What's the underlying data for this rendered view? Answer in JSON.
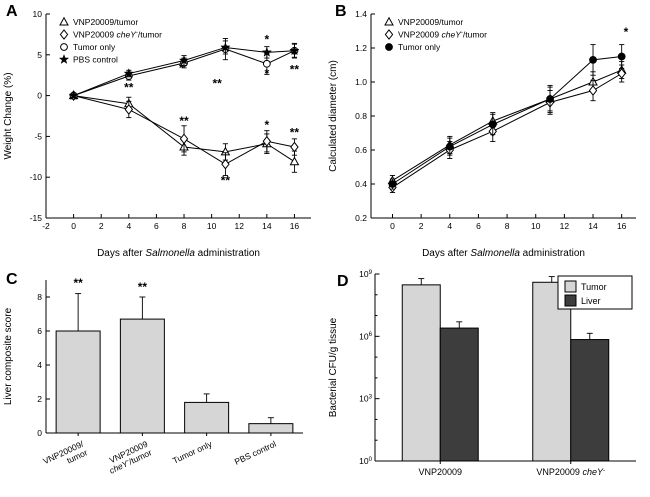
{
  "figure": {
    "background": "#ffffff"
  },
  "panels": {
    "a": {
      "letter": "A",
      "chart_data": {
        "type": "line",
        "xlabel_segments": [
          [
            "Days after ",
            ""
          ],
          [
            "Salmonella",
            "i"
          ],
          [
            " administration",
            ""
          ]
        ],
        "ylabel": "Weight Change (%)",
        "xlim": [
          -2,
          17.2
        ],
        "ylim": [
          -15,
          10
        ],
        "xticks": [
          -2,
          0,
          2,
          4,
          6,
          8,
          10,
          12,
          14,
          16
        ],
        "xtick_labels": [
          "-2",
          "0",
          "2",
          "4",
          "6",
          "8",
          "10",
          "12",
          "14",
          "16"
        ],
        "yticks": [
          -15,
          -10,
          -5,
          0,
          5,
          10
        ],
        "ytick_labels": [
          "-15",
          "-10",
          "-5",
          "0",
          "5",
          "10"
        ],
        "x": [
          0,
          4,
          8,
          11,
          14,
          16
        ],
        "series": [
          {
            "name": "VNP20009/tumor",
            "label_segments": [
              [
                "VNP20009/tumor",
                ""
              ]
            ],
            "marker": "triangle",
            "filled": false,
            "values": [
              0,
              -1.0,
              -6.3,
              -6.9,
              -5.9,
              -8.1
            ],
            "errors": [
              0.3,
              0.8,
              1.0,
              1.0,
              1.2,
              1.3
            ]
          },
          {
            "name": "VNP20009 cheY-/tumor",
            "label_segments": [
              [
                "VNP20009 ",
                ""
              ],
              [
                "cheY",
                "i"
              ],
              [
                "-",
                "sup"
              ],
              [
                "/tumor",
                ""
              ]
            ],
            "marker": "diamond",
            "filled": false,
            "values": [
              0,
              -1.7,
              -5.3,
              -8.4,
              -5.6,
              -6.3
            ],
            "errors": [
              0.3,
              1.0,
              1.6,
              1.4,
              1.3,
              1.0
            ]
          },
          {
            "name": "Tumor only",
            "label_segments": [
              [
                "Tumor only",
                ""
              ]
            ],
            "marker": "circle",
            "filled": false,
            "values": [
              0,
              2.4,
              4.0,
              5.7,
              3.9,
              5.5
            ],
            "errors": [
              0.2,
              0.5,
              0.6,
              1.3,
              1.3,
              0.9
            ]
          },
          {
            "name": "PBS control",
            "label_segments": [
              [
                "PBS control",
                ""
              ]
            ],
            "marker": "star",
            "filled": true,
            "values": [
              0,
              2.7,
              4.3,
              5.9,
              5.3,
              5.5
            ],
            "errors": [
              0.2,
              0.4,
              0.6,
              0.8,
              0.7,
              0.8
            ]
          }
        ],
        "annotations": [
          {
            "x": 4,
            "y": 0.5,
            "text": "**"
          },
          {
            "x": 8,
            "y": -3.6,
            "text": "**"
          },
          {
            "x": 7.8,
            "y": 2.9,
            "text": "*"
          },
          {
            "x": 10.4,
            "y": 1.0,
            "text": "**"
          },
          {
            "x": 11,
            "y": -10.9,
            "text": "**"
          },
          {
            "x": 14,
            "y": 6.4,
            "text": "*"
          },
          {
            "x": 14,
            "y": 2.2,
            "text": "*"
          },
          {
            "x": 14,
            "y": -4.1,
            "text": "*"
          },
          {
            "x": 16,
            "y": 2.7,
            "text": "**"
          },
          {
            "x": 16,
            "y": -5.0,
            "text": "**"
          }
        ]
      }
    },
    "b": {
      "letter": "B",
      "chart_data": {
        "type": "line",
        "xlabel_segments": [
          [
            "Days after ",
            ""
          ],
          [
            "Salmonella",
            "i"
          ],
          [
            " administration",
            ""
          ]
        ],
        "ylabel": "Calculated diameter (cm)",
        "xlim": [
          -1.5,
          17
        ],
        "ylim": [
          0.2,
          1.4
        ],
        "xticks": [
          0,
          2,
          4,
          6,
          8,
          10,
          12,
          14,
          16
        ],
        "xtick_labels": [
          "0",
          "2",
          "4",
          "6",
          "8",
          "10",
          "12",
          "14",
          "16"
        ],
        "yticks": [
          0.2,
          0.4,
          0.6,
          0.8,
          1.0,
          1.2,
          1.4
        ],
        "ytick_labels": [
          "0.2",
          "0.4",
          "0.6",
          "0.8",
          "1.0",
          "1.2",
          "1.4"
        ],
        "x": [
          0,
          4,
          7,
          11,
          14,
          16
        ],
        "series": [
          {
            "name": "VNP20009/tumor",
            "label_segments": [
              [
                "VNP20009/tumor",
                ""
              ]
            ],
            "marker": "triangle",
            "filled": false,
            "values": [
              0.42,
              0.63,
              0.77,
              0.9,
              1.0,
              1.07
            ],
            "errors": [
              0.03,
              0.05,
              0.05,
              0.07,
              0.06,
              0.05
            ]
          },
          {
            "name": "VNP20009 cheY-/tumor",
            "label_segments": [
              [
                "VNP20009 ",
                ""
              ],
              [
                "cheY",
                "i"
              ],
              [
                "-",
                "sup"
              ],
              [
                "/tumor",
                ""
              ]
            ],
            "marker": "diamond",
            "filled": false,
            "values": [
              0.38,
              0.6,
              0.71,
              0.88,
              0.95,
              1.05
            ],
            "errors": [
              0.03,
              0.05,
              0.06,
              0.07,
              0.06,
              0.05
            ]
          },
          {
            "name": "Tumor only",
            "label_segments": [
              [
                "Tumor only",
                ""
              ]
            ],
            "marker": "circle",
            "filled": true,
            "values": [
              0.4,
              0.62,
              0.75,
              0.9,
              1.13,
              1.15
            ],
            "errors": [
              0.03,
              0.05,
              0.06,
              0.08,
              0.09,
              0.07
            ]
          }
        ],
        "annotations": [
          {
            "x": 16.3,
            "y": 1.27,
            "text": "*"
          }
        ]
      }
    },
    "c": {
      "letter": "C",
      "chart_data": {
        "type": "bar",
        "ylabel": "Liver composite score",
        "ylim": [
          0,
          9
        ],
        "yticks": [
          0,
          2,
          4,
          6,
          8
        ],
        "ytick_labels": [
          "0",
          "2",
          "4",
          "6",
          "8"
        ],
        "bar_color": "#d6d6d6",
        "categories": [
          {
            "name": "VNP20009/tumor",
            "lines": [
              [
                [
                  "VNP20009/",
                  ""
                ]
              ],
              [
                [
                  "tumor",
                  ""
                ]
              ]
            ]
          },
          {
            "name": "VNP20009 cheY-/tumor",
            "lines": [
              [
                [
                  "VNP20009",
                  ""
                ]
              ],
              [
                [
                  "cheY",
                  "i"
                ],
                [
                  "-",
                  "sup"
                ],
                [
                  "/tumor",
                  ""
                ]
              ]
            ]
          },
          {
            "name": "Tumor only",
            "lines": [
              [
                [
                  "Tumor only",
                  ""
                ]
              ]
            ]
          },
          {
            "name": "PBS control",
            "lines": [
              [
                [
                  "PBS control",
                  ""
                ]
              ]
            ]
          }
        ],
        "values": [
          6.0,
          6.7,
          1.8,
          0.55
        ],
        "errors": [
          2.2,
          1.3,
          0.5,
          0.35
        ],
        "annotations": [
          {
            "ci": 0,
            "y": 8.6,
            "text": "**"
          },
          {
            "ci": 1,
            "y": 8.35,
            "text": "**"
          }
        ]
      }
    },
    "d": {
      "letter": "D",
      "chart_data": {
        "type": "bar-log",
        "ylabel": "Bacterial CFU/g tissue",
        "ylim_exp": [
          0,
          9
        ],
        "ytick_exps": [
          0,
          3,
          6,
          9
        ],
        "ytick_exp_labels": [
          "0",
          "3",
          "6",
          "9"
        ],
        "categories": [
          {
            "name": "VNP20009",
            "segments": [
              [
                "VNP20009",
                ""
              ]
            ]
          },
          {
            "name": "VNP20009 cheY-",
            "segments": [
              [
                "VNP20009 ",
                ""
              ],
              [
                "cheY",
                "i"
              ],
              [
                "-",
                "sup"
              ]
            ]
          }
        ],
        "series": [
          {
            "name": "Tumor",
            "color": "#d6d6d6",
            "values": [
              300000000.0,
              400000000.0
            ],
            "upper": [
              600000000.0,
              750000000.0
            ]
          },
          {
            "name": "Liver",
            "color": "#3d3d3d",
            "values": [
              2500000.0,
              700000.0
            ],
            "upper": [
              5000000.0,
              1400000.0
            ]
          }
        ]
      }
    }
  }
}
